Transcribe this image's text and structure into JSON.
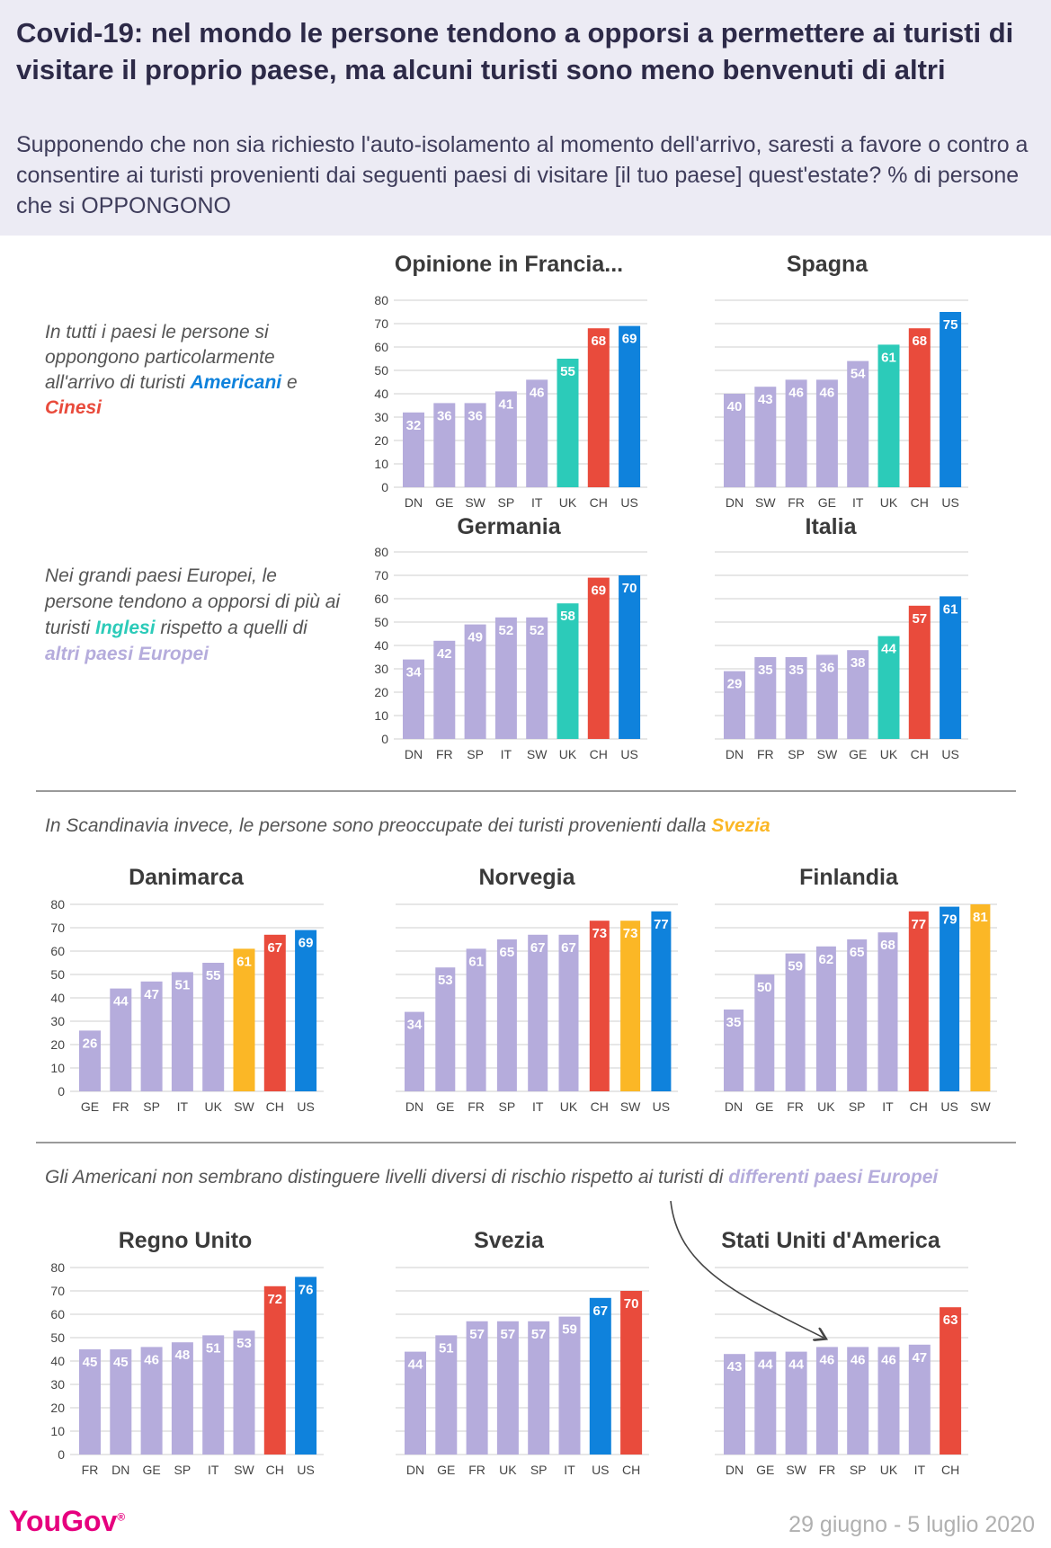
{
  "title": "Covid-19: nel mondo le persone tendono a opporsi a permettere ai turisti di visitare il proprio paese, ma alcuni turisti sono meno benvenuti di altri",
  "subtitle": "Supponendo che non sia richiesto l'auto-isolamento al momento dell'arrivo, saresti a favore o contro a consentire ai turisti provenienti dai seguenti paesi di visitare [il tuo paese] quest'estate? % di persone che si OPPONGONO",
  "notes": {
    "n1": {
      "a": "In tutti i paesi le persone si oppongono particolarmente all'arrivo di turisti ",
      "b": "Americani",
      "c": " e ",
      "d": "Cinesi"
    },
    "n2": {
      "a": "Nei grandi paesi Europei, le persone tendono a opporsi di più ai turisti ",
      "b": "Inglesi",
      "c": " rispetto a quelli di ",
      "d": "altri paesi Europei"
    },
    "n3": {
      "a": "In Scandinavia invece, le persone sono preoccupate dei turisti provenienti dalla ",
      "b": "Svezia"
    },
    "n4": {
      "a": "Gli Americani non sembrano distinguere livelli diversi di rischio rispetto ai turisti di ",
      "b": "differenti paesi Europei"
    }
  },
  "colors": {
    "other": "#b5acdc",
    "uk": "#2ccbb9",
    "ch": "#e94b3c",
    "us": "#0f82dc",
    "sw": "#fbb726",
    "title_bg": "#ecebf4"
  },
  "footer": {
    "logo": "YouGov",
    "date": "29 giugno - 5 luglio 2020"
  },
  "chart_data": [
    {
      "type": "bar",
      "title": "Opinione in Francia...",
      "categories": [
        "DN",
        "GE",
        "SW",
        "SP",
        "IT",
        "UK",
        "CH",
        "US"
      ],
      "values": [
        32,
        36,
        36,
        41,
        46,
        55,
        68,
        69
      ],
      "ylim": [
        0,
        80
      ],
      "yticks": [
        0,
        10,
        20,
        30,
        40,
        50,
        60,
        70,
        80
      ],
      "colors": [
        "other",
        "other",
        "other",
        "other",
        "other",
        "uk",
        "ch",
        "us"
      ]
    },
    {
      "type": "bar",
      "title": "Spagna",
      "categories": [
        "DN",
        "SW",
        "FR",
        "GE",
        "IT",
        "UK",
        "CH",
        "US"
      ],
      "values": [
        40,
        43,
        46,
        46,
        54,
        61,
        68,
        75
      ],
      "ylim": [
        0,
        80
      ],
      "yticks": [],
      "colors": [
        "other",
        "other",
        "other",
        "other",
        "other",
        "uk",
        "ch",
        "us"
      ]
    },
    {
      "type": "bar",
      "title": "Germania",
      "categories": [
        "DN",
        "FR",
        "SP",
        "IT",
        "SW",
        "UK",
        "CH",
        "US"
      ],
      "values": [
        34,
        42,
        49,
        52,
        52,
        58,
        69,
        70
      ],
      "ylim": [
        0,
        80
      ],
      "yticks": [
        0,
        10,
        20,
        30,
        40,
        50,
        60,
        70,
        80
      ],
      "colors": [
        "other",
        "other",
        "other",
        "other",
        "other",
        "uk",
        "ch",
        "us"
      ]
    },
    {
      "type": "bar",
      "title": "Italia",
      "categories": [
        "DN",
        "FR",
        "SP",
        "SW",
        "GE",
        "UK",
        "CH",
        "US"
      ],
      "values": [
        29,
        35,
        35,
        36,
        38,
        44,
        57,
        61
      ],
      "ylim": [
        0,
        80
      ],
      "yticks": [],
      "colors": [
        "other",
        "other",
        "other",
        "other",
        "other",
        "uk",
        "ch",
        "us"
      ]
    },
    {
      "type": "bar",
      "title": "Danimarca",
      "categories": [
        "GE",
        "FR",
        "SP",
        "IT",
        "UK",
        "SW",
        "CH",
        "US"
      ],
      "values": [
        26,
        44,
        47,
        51,
        55,
        61,
        67,
        69
      ],
      "ylim": [
        0,
        80
      ],
      "yticks": [
        0,
        10,
        20,
        30,
        40,
        50,
        60,
        70,
        80
      ],
      "colors": [
        "other",
        "other",
        "other",
        "other",
        "other",
        "sw",
        "ch",
        "us"
      ]
    },
    {
      "type": "bar",
      "title": "Norvegia",
      "categories": [
        "DN",
        "GE",
        "FR",
        "SP",
        "IT",
        "UK",
        "CH",
        "SW",
        "US"
      ],
      "values": [
        34,
        53,
        61,
        65,
        67,
        67,
        73,
        73,
        77
      ],
      "ylim": [
        0,
        80
      ],
      "yticks": [],
      "colors": [
        "other",
        "other",
        "other",
        "other",
        "other",
        "other",
        "ch",
        "sw",
        "us"
      ]
    },
    {
      "type": "bar",
      "title": "Finlandia",
      "categories": [
        "DN",
        "GE",
        "FR",
        "UK",
        "SP",
        "IT",
        "CH",
        "US",
        "SW"
      ],
      "values": [
        35,
        50,
        59,
        62,
        65,
        68,
        77,
        79,
        81
      ],
      "ylim": [
        0,
        80
      ],
      "yticks": [],
      "colors": [
        "other",
        "other",
        "other",
        "other",
        "other",
        "other",
        "ch",
        "us",
        "sw"
      ]
    },
    {
      "type": "bar",
      "title": "Regno Unito",
      "categories": [
        "FR",
        "DN",
        "GE",
        "SP",
        "IT",
        "SW",
        "CH",
        "US"
      ],
      "values": [
        45,
        45,
        46,
        48,
        51,
        53,
        72,
        76
      ],
      "ylim": [
        0,
        80
      ],
      "yticks": [
        0,
        10,
        20,
        30,
        40,
        50,
        60,
        70,
        80
      ],
      "colors": [
        "other",
        "other",
        "other",
        "other",
        "other",
        "other",
        "ch",
        "us"
      ]
    },
    {
      "type": "bar",
      "title": "Svezia",
      "categories": [
        "DN",
        "GE",
        "FR",
        "UK",
        "SP",
        "IT",
        "US",
        "CH"
      ],
      "values": [
        44,
        51,
        57,
        57,
        57,
        59,
        67,
        70
      ],
      "ylim": [
        0,
        80
      ],
      "yticks": [],
      "colors": [
        "other",
        "other",
        "other",
        "other",
        "other",
        "other",
        "us",
        "ch"
      ]
    },
    {
      "type": "bar",
      "title": "Stati Uniti d'America",
      "categories": [
        "DN",
        "GE",
        "SW",
        "FR",
        "SP",
        "UK",
        "IT",
        "CH"
      ],
      "values": [
        43,
        44,
        44,
        46,
        46,
        46,
        47,
        63
      ],
      "ylim": [
        0,
        80
      ],
      "yticks": [],
      "colors": [
        "other",
        "other",
        "other",
        "other",
        "other",
        "other",
        "other",
        "ch"
      ]
    }
  ]
}
